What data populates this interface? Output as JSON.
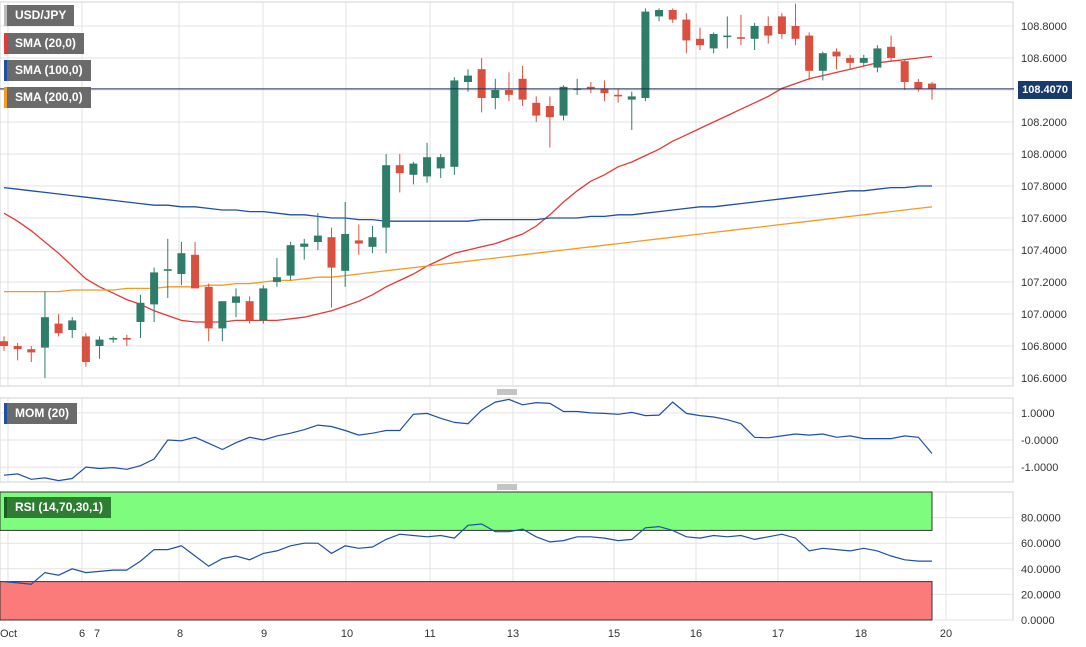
{
  "chart_data": [
    {
      "type": "candlestick",
      "symbol": "USD/JPY",
      "current_price": 108.407,
      "current_price_label": "108.4070",
      "ylim": [
        106.55,
        108.95
      ],
      "yticks": [
        "108.8000",
        "108.6000",
        "108.4000",
        "108.2000",
        "108.0000",
        "107.8000",
        "107.6000",
        "107.4000",
        "107.2000",
        "107.0000",
        "106.8000",
        "106.6000"
      ],
      "ytick_values": [
        108.8,
        108.6,
        108.4,
        108.2,
        108.0,
        107.8,
        107.6,
        107.4,
        107.2,
        107.0,
        106.8,
        106.6
      ],
      "x_tick_labels": [
        "Oct",
        "6",
        "7",
        "8",
        "9",
        "10",
        "11",
        "13",
        "15",
        "16",
        "17",
        "18",
        "20"
      ],
      "candles": [
        [
          106.83,
          106.86,
          106.77,
          106.8
        ],
        [
          106.8,
          106.82,
          106.71,
          106.78
        ],
        [
          106.78,
          106.8,
          106.7,
          106.76
        ],
        [
          106.79,
          107.14,
          106.6,
          106.98
        ],
        [
          106.94,
          107.0,
          106.86,
          106.88
        ],
        [
          106.9,
          106.98,
          106.85,
          106.96
        ],
        [
          106.86,
          106.88,
          106.67,
          106.7
        ],
        [
          106.8,
          106.86,
          106.72,
          106.84
        ],
        [
          106.84,
          106.86,
          106.82,
          106.85
        ],
        [
          106.85,
          106.87,
          106.8,
          106.84
        ],
        [
          106.95,
          107.12,
          106.85,
          107.07
        ],
        [
          107.06,
          107.29,
          106.95,
          107.26
        ],
        [
          107.27,
          107.47,
          107.1,
          107.28
        ],
        [
          107.25,
          107.45,
          107.18,
          107.38
        ],
        [
          107.37,
          107.45,
          107.18,
          107.16
        ],
        [
          107.17,
          107.19,
          106.83,
          106.91
        ],
        [
          106.91,
          107.06,
          106.83,
          107.08
        ],
        [
          107.07,
          107.16,
          106.98,
          107.11
        ],
        [
          107.08,
          107.11,
          106.94,
          106.96
        ],
        [
          106.96,
          107.18,
          106.94,
          107.16
        ],
        [
          107.2,
          107.35,
          107.17,
          107.23
        ],
        [
          107.24,
          107.45,
          107.21,
          107.43
        ],
        [
          107.42,
          107.47,
          107.34,
          107.44
        ],
        [
          107.45,
          107.63,
          107.4,
          107.49
        ],
        [
          107.48,
          107.54,
          107.04,
          107.29
        ],
        [
          107.27,
          107.7,
          107.17,
          107.5
        ],
        [
          107.46,
          107.56,
          107.37,
          107.44
        ],
        [
          107.42,
          107.55,
          107.38,
          107.48
        ],
        [
          107.54,
          108.0,
          107.38,
          107.93
        ],
        [
          107.93,
          108.0,
          107.76,
          107.88
        ],
        [
          107.87,
          107.95,
          107.81,
          107.94
        ],
        [
          107.86,
          108.07,
          107.82,
          107.98
        ],
        [
          107.91,
          108.0,
          107.85,
          107.98
        ],
        [
          107.92,
          108.48,
          107.87,
          108.46
        ],
        [
          108.45,
          108.53,
          108.39,
          108.49
        ],
        [
          108.53,
          108.6,
          108.26,
          108.35
        ],
        [
          108.35,
          108.47,
          108.28,
          108.4
        ],
        [
          108.4,
          108.51,
          108.33,
          108.37
        ],
        [
          108.47,
          108.55,
          108.3,
          108.34
        ],
        [
          108.32,
          108.36,
          108.2,
          108.24
        ],
        [
          108.3,
          108.36,
          108.04,
          108.23
        ],
        [
          108.24,
          108.43,
          108.21,
          108.42
        ],
        [
          108.41,
          108.47,
          108.37,
          108.41
        ],
        [
          108.42,
          108.45,
          108.38,
          108.41
        ],
        [
          108.41,
          108.46,
          108.33,
          108.38
        ],
        [
          108.37,
          108.41,
          108.32,
          108.36
        ],
        [
          108.34,
          108.39,
          108.15,
          108.36
        ],
        [
          108.35,
          108.91,
          108.33,
          108.89
        ],
        [
          108.86,
          108.91,
          108.83,
          108.9
        ],
        [
          108.9,
          108.91,
          108.82,
          108.84
        ],
        [
          108.84,
          108.88,
          108.63,
          108.71
        ],
        [
          108.72,
          108.79,
          108.65,
          108.68
        ],
        [
          108.66,
          108.76,
          108.63,
          108.75
        ],
        [
          108.74,
          108.86,
          108.66,
          108.74
        ],
        [
          108.73,
          108.87,
          108.68,
          108.72
        ],
        [
          108.72,
          108.82,
          108.65,
          108.8
        ],
        [
          108.8,
          108.86,
          108.69,
          108.74
        ],
        [
          108.86,
          108.88,
          108.72,
          108.75
        ],
        [
          108.8,
          108.94,
          108.68,
          108.72
        ],
        [
          108.74,
          108.76,
          108.46,
          108.52
        ],
        [
          108.52,
          108.64,
          108.46,
          108.63
        ],
        [
          108.64,
          108.66,
          108.53,
          108.61
        ],
        [
          108.6,
          108.62,
          108.53,
          108.57
        ],
        [
          108.57,
          108.62,
          108.55,
          108.6
        ],
        [
          108.54,
          108.68,
          108.51,
          108.66
        ],
        [
          108.67,
          108.74,
          108.58,
          108.6
        ],
        [
          108.58,
          108.59,
          108.4,
          108.45
        ],
        [
          108.45,
          108.47,
          108.39,
          108.41
        ],
        [
          108.44,
          108.45,
          108.34,
          108.41
        ]
      ],
      "series": [
        {
          "name": "SMA (20,0)",
          "color": "#e53935",
          "values": [
            107.63,
            107.58,
            107.52,
            107.45,
            107.38,
            107.3,
            107.22,
            107.17,
            107.13,
            107.09,
            107.06,
            107.02,
            106.99,
            106.96,
            106.95,
            106.95,
            106.95,
            106.96,
            106.96,
            106.96,
            106.96,
            106.97,
            106.98,
            107.0,
            107.02,
            107.05,
            107.08,
            107.12,
            107.17,
            107.21,
            107.25,
            107.3,
            107.34,
            107.38,
            107.4,
            107.42,
            107.44,
            107.47,
            107.5,
            107.55,
            107.62,
            107.7,
            107.77,
            107.83,
            107.87,
            107.92,
            107.95,
            107.99,
            108.03,
            108.08,
            108.12,
            108.16,
            108.2,
            108.24,
            108.28,
            108.32,
            108.36,
            108.41,
            108.44,
            108.47,
            108.49,
            108.51,
            108.53,
            108.55,
            108.57,
            108.58,
            108.59,
            108.6,
            108.61
          ]
        },
        {
          "name": "SMA (100,0)",
          "color": "#1e4fa8",
          "values": [
            107.79,
            107.78,
            107.77,
            107.76,
            107.75,
            107.74,
            107.73,
            107.72,
            107.71,
            107.7,
            107.69,
            107.68,
            107.68,
            107.67,
            107.67,
            107.66,
            107.65,
            107.65,
            107.64,
            107.64,
            107.63,
            107.62,
            107.62,
            107.61,
            107.6,
            107.6,
            107.59,
            107.59,
            107.58,
            107.58,
            107.58,
            107.58,
            107.58,
            107.58,
            107.58,
            107.59,
            107.59,
            107.59,
            107.59,
            107.59,
            107.6,
            107.6,
            107.6,
            107.61,
            107.61,
            107.62,
            107.62,
            107.63,
            107.64,
            107.65,
            107.66,
            107.67,
            107.67,
            107.68,
            107.69,
            107.7,
            107.71,
            107.72,
            107.73,
            107.74,
            107.75,
            107.76,
            107.77,
            107.77,
            107.78,
            107.79,
            107.79,
            107.8,
            107.8
          ]
        },
        {
          "name": "SMA (200,0)",
          "color": "#f59a23",
          "values": [
            107.14,
            107.14,
            107.14,
            107.14,
            107.14,
            107.15,
            107.15,
            107.15,
            107.15,
            107.16,
            107.16,
            107.16,
            107.17,
            107.17,
            107.17,
            107.18,
            107.18,
            107.19,
            107.19,
            107.2,
            107.21,
            107.21,
            107.22,
            107.23,
            107.23,
            107.24,
            107.25,
            107.26,
            107.27,
            107.28,
            107.29,
            107.3,
            107.31,
            107.32,
            107.33,
            107.34,
            107.35,
            107.36,
            107.37,
            107.38,
            107.39,
            107.4,
            107.41,
            107.42,
            107.43,
            107.44,
            107.45,
            107.46,
            107.47,
            107.48,
            107.49,
            107.5,
            107.51,
            107.52,
            107.53,
            107.54,
            107.55,
            107.56,
            107.57,
            107.58,
            107.59,
            107.6,
            107.61,
            107.62,
            107.63,
            107.64,
            107.65,
            107.66,
            107.67
          ]
        }
      ]
    },
    {
      "type": "line",
      "name": "MOM (20)",
      "ylim": [
        -1.55,
        1.55
      ],
      "yticks": [
        "1.0000",
        "-0.0000",
        "-1.0000"
      ],
      "ytick_values": [
        1.0,
        0.0,
        -1.0
      ],
      "series": [
        {
          "name": "MOM (20)",
          "color": "#1e4fa8",
          "values": [
            -1.3,
            -1.25,
            -1.45,
            -1.4,
            -1.5,
            -1.42,
            -1.0,
            -1.05,
            -1.02,
            -1.08,
            -0.95,
            -0.7,
            0.0,
            -0.03,
            0.1,
            -0.12,
            -0.35,
            -0.1,
            0.1,
            0.0,
            0.15,
            0.25,
            0.38,
            0.55,
            0.5,
            0.35,
            0.18,
            0.25,
            0.35,
            0.35,
            0.95,
            0.98,
            0.8,
            0.65,
            0.6,
            1.1,
            1.4,
            1.5,
            1.3,
            1.38,
            1.35,
            1.05,
            1.05,
            1.0,
            0.98,
            0.95,
            1.02,
            0.9,
            0.92,
            1.4,
            0.98,
            0.9,
            0.85,
            0.75,
            0.6,
            0.1,
            0.08,
            0.15,
            0.22,
            0.18,
            0.22,
            0.1,
            0.15,
            0.05,
            0.05,
            0.05,
            0.15,
            0.1,
            -0.5
          ]
        }
      ]
    },
    {
      "type": "line",
      "name": "RSI (14,70,30,1)",
      "ylim": [
        0,
        100
      ],
      "yticks": [
        "80.0000",
        "60.0000",
        "40.0000",
        "20.0000",
        "0.0000"
      ],
      "ytick_values": [
        80,
        60,
        40,
        20,
        0
      ],
      "overbought": 70,
      "oversold": 30,
      "series": [
        {
          "name": "RSI (14,70,30,1)",
          "color": "#1e4fa8",
          "values": [
            30,
            29,
            28,
            37,
            35,
            40,
            37,
            38,
            39,
            39,
            46,
            55,
            55,
            58,
            50,
            42,
            48,
            50,
            47,
            52,
            54,
            58,
            60,
            60,
            52,
            58,
            56,
            57,
            63,
            67,
            66,
            65,
            66,
            64,
            74,
            75,
            69,
            69,
            71,
            65,
            61,
            62,
            65,
            65,
            64,
            62,
            63,
            72,
            73,
            70,
            65,
            64,
            66,
            65,
            66,
            63,
            65,
            67,
            64,
            54,
            56,
            55,
            54,
            56,
            54,
            50,
            47,
            46,
            46
          ]
        }
      ]
    }
  ],
  "legend": {
    "symbol": "USD/JPY",
    "sma20": "SMA (20,0)",
    "sma100": "SMA (100,0)",
    "sma200": "SMA (200,0)",
    "mom": "MOM (20)",
    "rsi": "RSI (14,70,30,1)"
  },
  "colors": {
    "bull": "#2e7d6b",
    "bear": "#d9503f",
    "price_line": "#1a2f5a",
    "overbought_fill": "#7dfc7d",
    "oversold_fill": "#fb7b7b",
    "grid": "#e3e3e3"
  }
}
